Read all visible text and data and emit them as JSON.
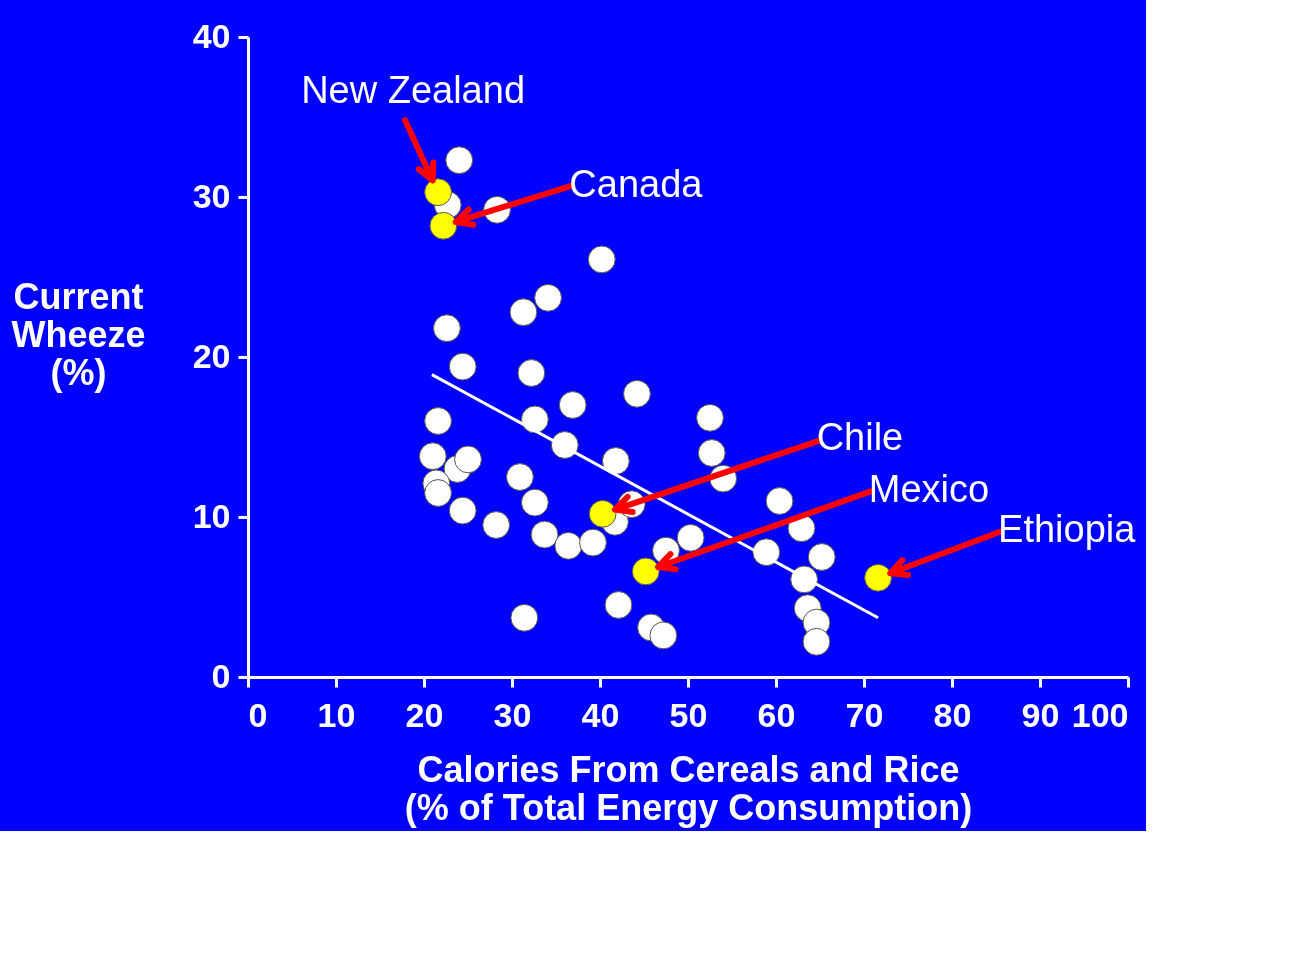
{
  "chart_data": {
    "type": "scatter",
    "xlabel": "Calories From Cereals and Rice\n(% of Total Energy Consumption)",
    "ylabel": "Current\nWheeze\n(%)",
    "xlim": [
      0,
      100
    ],
    "ylim": [
      0,
      40
    ],
    "xticks": [
      0,
      10,
      20,
      30,
      40,
      50,
      60,
      70,
      80,
      90,
      100
    ],
    "yticks": [
      0,
      10,
      20,
      30,
      40
    ],
    "grid": false,
    "marker": "circle",
    "series": [
      {
        "color": "#ffffff",
        "x": [
          24.0,
          22.7,
          28.3,
          40.2,
          31.3,
          34.1,
          22.6,
          24.4,
          32.2,
          44.2,
          36.9,
          21.6,
          32.6,
          52.5,
          36.0,
          41.8,
          21.0,
          23.8,
          25.0,
          52.7,
          54.0,
          21.4,
          21.6,
          30.9,
          32.6,
          24.4,
          28.2,
          33.7,
          36.4,
          39.2,
          41.7,
          43.6,
          60.4,
          62.9,
          50.3,
          47.5,
          58.9,
          65.2,
          63.2,
          63.6,
          64.6,
          64.6,
          42.1,
          45.8,
          47.2,
          31.4
        ],
        "values": [
          32.3,
          29.5,
          29.2,
          26.1,
          22.8,
          23.7,
          21.8,
          19.4,
          19.0,
          17.7,
          17.0,
          16.0,
          16.1,
          16.2,
          14.5,
          13.5,
          13.8,
          13.0,
          13.6,
          14.0,
          12.4,
          12.1,
          11.5,
          12.5,
          10.9,
          10.4,
          9.5,
          8.9,
          8.2,
          8.4,
          9.7,
          10.8,
          11.0,
          9.3,
          8.7,
          7.9,
          7.8,
          7.5,
          6.1,
          4.3,
          3.4,
          2.2,
          4.5,
          3.1,
          2.6,
          3.7
        ]
      },
      {
        "type": "line",
        "color": "#ffffff",
        "marker": "none",
        "x": [
          20.9,
          71.6
        ],
        "values": [
          18.9,
          3.7
        ]
      },
      {
        "color": "#ffff00",
        "x": [
          21.6,
          22.2,
          40.3,
          45.2,
          71.6
        ],
        "values": [
          30.3,
          28.2,
          10.2,
          6.6,
          6.2
        ]
      }
    ],
    "annotations": [
      {
        "text": "New Zealand",
        "x": 21.6,
        "y": 30.3
      },
      "Canada",
      "Chile",
      "Mexico",
      "Ethiopia"
    ]
  }
}
